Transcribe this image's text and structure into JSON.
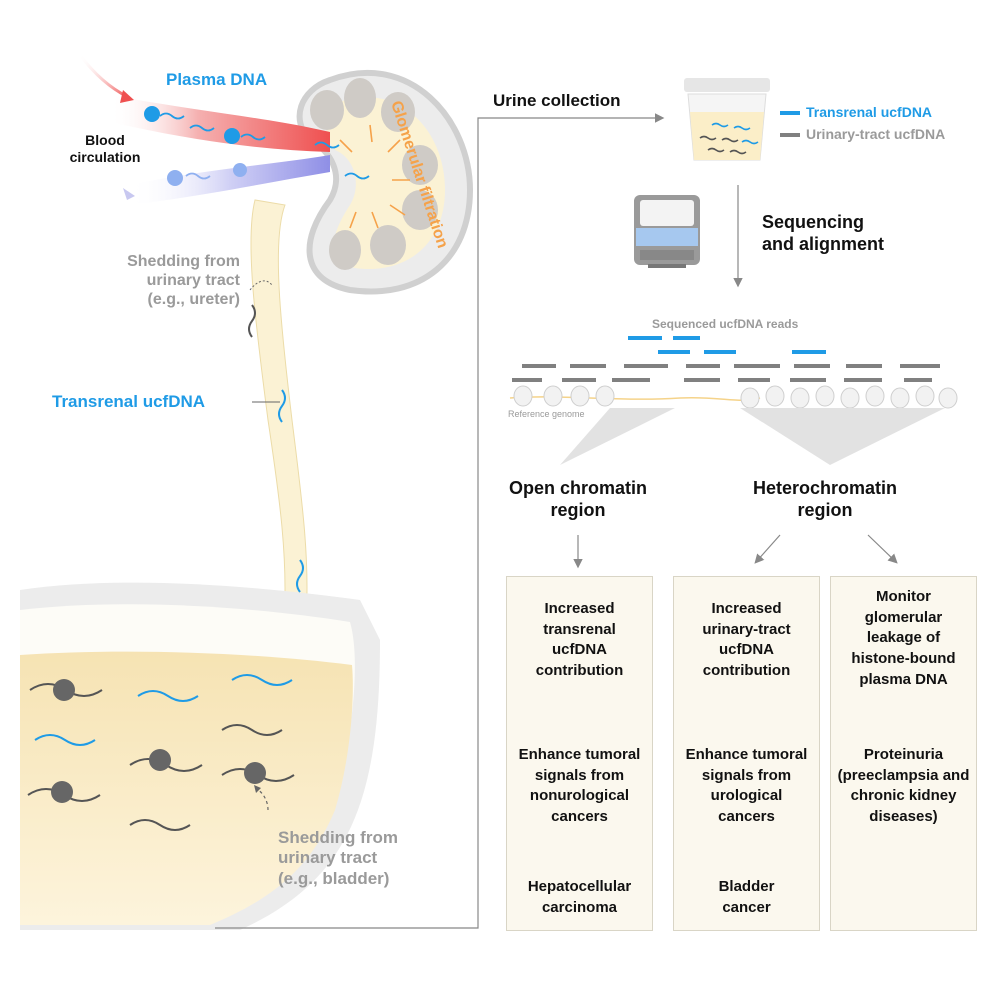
{
  "colors": {
    "transrenal": "#1f9be6",
    "urinary_tract": "#808080",
    "filtration": "#f5a24a",
    "urine": "#fbeec8",
    "artery": "#ef6b6b",
    "vein": "#9a9ae8"
  },
  "kidney": {
    "plasma_dna": "Plasma DNA",
    "blood_circulation": "Blood\ncirculation",
    "glomerular_filtration": "Glomerular filtration",
    "shedding_ureter": "Shedding from\nurinary tract\n(e.g., ureter)",
    "transrenal_label": "Transrenal ucfDNA",
    "shedding_bladder": "Shedding from\nurinary tract\n(e.g., bladder)"
  },
  "workflow": {
    "urine_collection": "Urine collection",
    "legend": {
      "transrenal": "Transrenal ucfDNA",
      "urinary_tract": "Urinary-tract ucfDNA"
    },
    "sequencing": "Sequencing\nand alignment",
    "reads_label": "Sequenced ucfDNA reads",
    "reference_genome": "Reference genome",
    "open_chromatin": "Open chromatin\nregion",
    "heterochromatin": "Heterochromatin\nregion"
  },
  "boxes": [
    {
      "step1": "Increased\ntransrenal\nucfDNA\ncontribution",
      "step2": "Enhance tumoral\nsignals from\nnonurological\ncancers",
      "step3": "Hepatocellular\ncarcinoma"
    },
    {
      "step1": "Increased\nurinary-tract\nucfDNA\ncontribution",
      "step2": "Enhance tumoral\nsignals from\nurological\ncancers",
      "step3": "Bladder\ncancer"
    },
    {
      "step1": "Monitor\nglomerular\nleakage of\nhistone-bound\nplasma DNA",
      "step2": "Proteinuria\n(preeclampsia and\nchronic kidney\ndiseases)"
    }
  ]
}
